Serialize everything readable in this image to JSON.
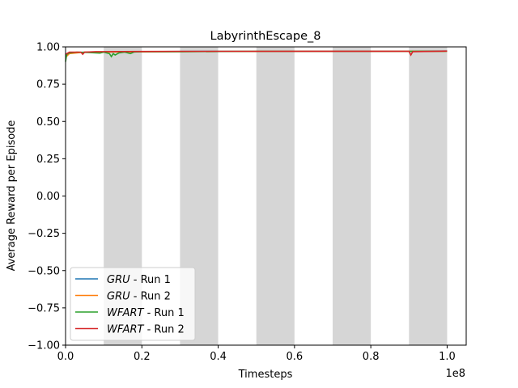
{
  "chart_data": {
    "type": "line",
    "title": "LabyrinthEscape_8",
    "xlabel": "Timesteps",
    "ylabel": "Average Reward per Episode",
    "x_offset_label": "1e8",
    "xlim": [
      0,
      1.05
    ],
    "ylim": [
      -1.0,
      1.0
    ],
    "x_ticks": [
      "0.0",
      "0.2",
      "0.4",
      "0.6",
      "0.8",
      "1.0"
    ],
    "y_ticks": [
      "1.00",
      "0.75",
      "0.50",
      "0.25",
      "0.00",
      "−0.25",
      "−0.50",
      "−0.75",
      "−1.00"
    ],
    "shaded_bands": [
      [
        0.1,
        0.2
      ],
      [
        0.3,
        0.4
      ],
      [
        0.5,
        0.6
      ],
      [
        0.7,
        0.8
      ],
      [
        0.9,
        1.0
      ]
    ],
    "legend_location": "lower-left",
    "series": [
      {
        "name_italic": "GRU",
        "name_suffix": " - Run 1",
        "color": "#1f77b4",
        "points": [
          [
            0.0,
            0.94
          ],
          [
            0.01,
            0.96
          ],
          [
            0.05,
            0.965
          ],
          [
            0.2,
            0.968
          ],
          [
            0.4,
            0.97
          ],
          [
            0.6,
            0.97
          ],
          [
            0.8,
            0.971
          ],
          [
            1.0,
            0.972
          ]
        ]
      },
      {
        "name_italic": "GRU",
        "name_suffix": " - Run 2",
        "color": "#ff7f0e",
        "points": [
          [
            0.0,
            0.93
          ],
          [
            0.01,
            0.955
          ],
          [
            0.05,
            0.965
          ],
          [
            0.2,
            0.967
          ],
          [
            0.4,
            0.969
          ],
          [
            0.6,
            0.97
          ],
          [
            0.8,
            0.97
          ],
          [
            1.0,
            0.971
          ]
        ]
      },
      {
        "name_italic": "WFART",
        "name_suffix": " - Run 1",
        "color": "#2ca02c",
        "points": [
          [
            0.0,
            0.9
          ],
          [
            0.003,
            0.95
          ],
          [
            0.01,
            0.96
          ],
          [
            0.03,
            0.965
          ],
          [
            0.06,
            0.962
          ],
          [
            0.09,
            0.958
          ],
          [
            0.1,
            0.965
          ],
          [
            0.115,
            0.955
          ],
          [
            0.12,
            0.935
          ],
          [
            0.125,
            0.955
          ],
          [
            0.13,
            0.945
          ],
          [
            0.14,
            0.96
          ],
          [
            0.155,
            0.965
          ],
          [
            0.17,
            0.955
          ],
          [
            0.18,
            0.966
          ],
          [
            0.2,
            0.968
          ],
          [
            0.3,
            0.968
          ],
          [
            0.5,
            0.97
          ],
          [
            0.7,
            0.97
          ],
          [
            0.9,
            0.97
          ],
          [
            1.0,
            0.971
          ]
        ]
      },
      {
        "name_italic": "WFART",
        "name_suffix": " - Run 2",
        "color": "#d62728",
        "points": [
          [
            0.0,
            0.95
          ],
          [
            0.01,
            0.965
          ],
          [
            0.04,
            0.965
          ],
          [
            0.045,
            0.95
          ],
          [
            0.05,
            0.965
          ],
          [
            0.08,
            0.968
          ],
          [
            0.2,
            0.969
          ],
          [
            0.3,
            0.97
          ],
          [
            0.4,
            0.97
          ],
          [
            0.5,
            0.97
          ],
          [
            0.7,
            0.971
          ],
          [
            0.9,
            0.971
          ],
          [
            0.905,
            0.945
          ],
          [
            0.91,
            0.968
          ],
          [
            1.0,
            0.972
          ]
        ]
      }
    ]
  }
}
